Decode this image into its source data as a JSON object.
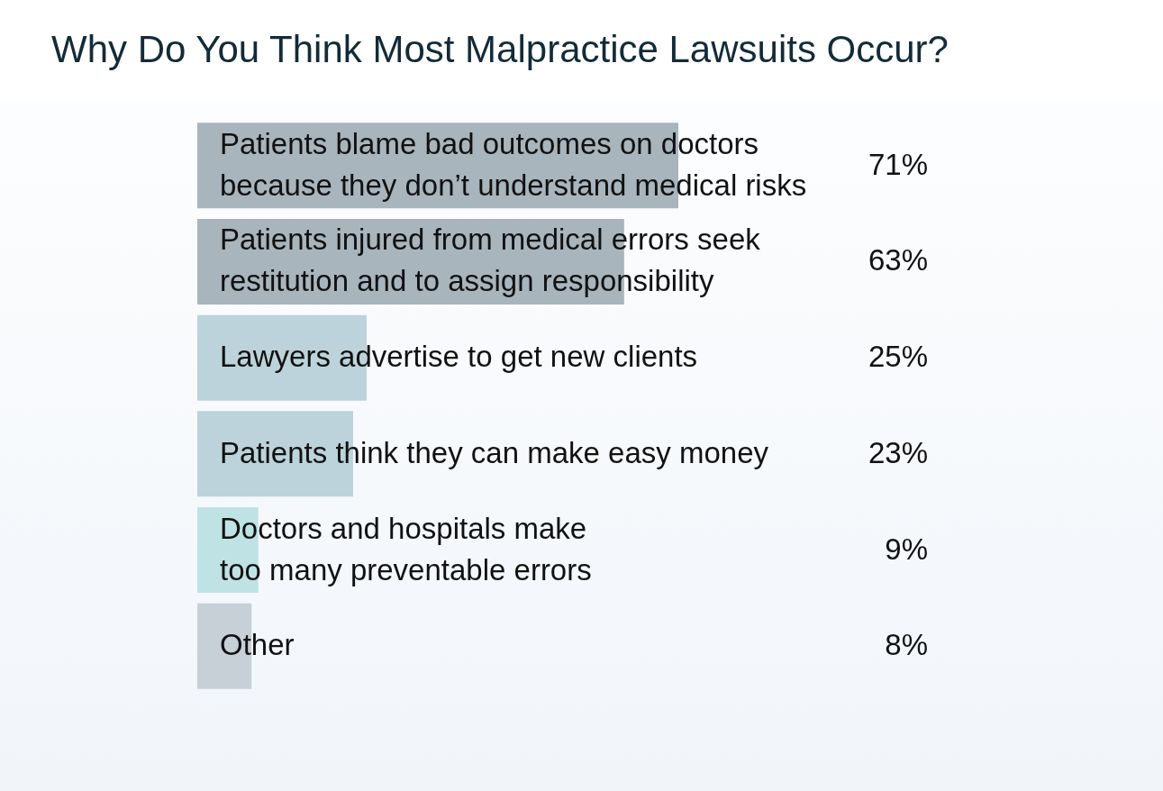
{
  "chart_data": {
    "type": "bar",
    "orientation": "horizontal",
    "title": "Why Do You Think Most Malpractice Lawsuits Occur?",
    "categories": [
      "Patients blame bad outcomes on doctors\nbecause they don’t understand medical risks",
      "Patients injured from medical errors seek\nrestitution and to assign responsibility",
      "Lawyers advertise to get new clients",
      "Patients think they can make easy money",
      "Doctors and hospitals make\ntoo many preventable errors",
      "Other"
    ],
    "values": [
      71,
      63,
      25,
      23,
      9,
      8
    ],
    "colors": [
      "#a8b5bd",
      "#a8b5bd",
      "#bcd3db",
      "#bcd3db",
      "#bfe2e5",
      "#c7cfd7"
    ],
    "value_labels": [
      "71%",
      "63%",
      "25%",
      "23%",
      "9%",
      "8%"
    ]
  }
}
